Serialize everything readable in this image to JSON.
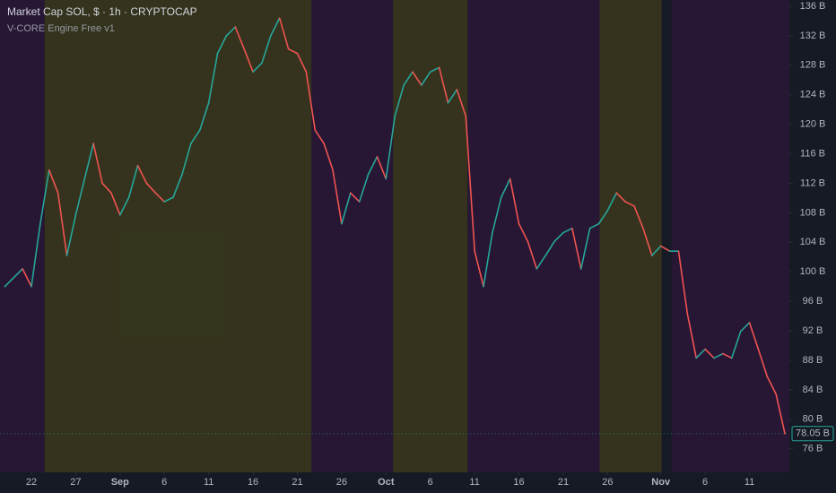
{
  "chart_data": {
    "type": "line",
    "title": "Market Cap SOL, $ · 1h · CRYPTOCAP",
    "subtitle": "V-CORE Engine Free v1",
    "up_color": "#26a69a",
    "down_color": "#ef5350",
    "x": [
      19,
      20,
      21,
      22,
      23,
      24,
      25,
      26,
      27,
      28,
      29,
      30,
      31,
      32,
      33,
      34,
      35,
      36,
      37,
      38,
      39,
      40,
      41,
      42,
      43,
      44,
      45,
      46,
      47,
      48,
      49,
      50,
      51,
      52,
      53,
      54,
      55,
      56,
      57,
      58,
      59,
      60,
      61,
      62,
      63,
      64,
      65,
      66,
      67,
      68,
      69,
      70,
      71,
      72,
      73,
      74,
      75,
      76,
      77,
      78,
      79,
      80,
      81,
      82,
      83,
      84,
      85,
      86,
      87,
      88,
      89,
      90,
      91,
      92,
      93,
      94,
      95,
      96,
      97,
      98,
      99,
      100,
      101,
      102,
      103,
      104,
      105,
      106,
      107
    ],
    "series": [
      {
        "values": [
          98.0,
          99.2,
          100.4,
          98.0,
          106.5,
          113.8,
          110.7,
          102.2,
          107.7,
          112.6,
          117.4,
          112.0,
          110.7,
          107.7,
          110.1,
          114.4,
          112.0,
          110.7,
          109.5,
          110.1,
          113.2,
          117.4,
          119.2,
          122.9,
          129.6,
          132.0,
          133.2,
          130.2,
          127.1,
          128.3,
          132.0,
          134.4,
          130.2,
          129.6,
          127.1,
          119.2,
          117.4,
          113.8,
          106.5,
          110.7,
          109.5,
          113.2,
          115.6,
          112.6,
          121.1,
          125.3,
          127.1,
          125.3,
          127.1,
          127.7,
          122.9,
          124.7,
          121.1,
          102.8,
          98.0,
          105.3,
          110.1,
          112.6,
          106.5,
          104.1,
          100.4,
          102.2,
          104.1,
          105.3,
          105.9,
          100.4,
          105.9,
          106.5,
          108.3,
          110.7,
          109.5,
          108.9,
          105.9,
          102.2,
          103.5,
          102.8,
          102.8,
          94.3,
          88.3,
          89.5,
          88.3,
          88.9,
          88.3,
          91.9,
          93.1,
          89.5,
          85.8,
          83.4,
          78.05
        ]
      }
    ],
    "bands": [
      {
        "start": 18.46,
        "end": 23.5,
        "color": "#2a1838"
      },
      {
        "start": 23.5,
        "end": 53.6,
        "color": "#3b381c"
      },
      {
        "start": 53.6,
        "end": 62.8,
        "color": "#2a1838"
      },
      {
        "start": 62.8,
        "end": 71.2,
        "color": "#3b381c"
      },
      {
        "start": 71.2,
        "end": 86.1,
        "color": "#2a1838"
      },
      {
        "start": 86.1,
        "end": 93.1,
        "color": "#3b381c"
      },
      {
        "start": 94.2,
        "end": 107.5,
        "color": "#2a1838"
      }
    ],
    "last_price": {
      "value": 78.05,
      "label": "78.05 B"
    },
    "grid": false,
    "xlim": [
      18.46,
      107.5
    ],
    "xticks": [
      {
        "value": 22,
        "label": "22"
      },
      {
        "value": 27,
        "label": "27"
      },
      {
        "value": 32,
        "label": "Sep"
      },
      {
        "value": 37,
        "label": "6"
      },
      {
        "value": 42,
        "label": "11"
      },
      {
        "value": 47,
        "label": "16"
      },
      {
        "value": 52,
        "label": "21"
      },
      {
        "value": 57,
        "label": "26"
      },
      {
        "value": 62,
        "label": "Oct"
      },
      {
        "value": 67,
        "label": "6"
      },
      {
        "value": 72,
        "label": "11"
      },
      {
        "value": 77,
        "label": "16"
      },
      {
        "value": 82,
        "label": "21"
      },
      {
        "value": 87,
        "label": "26"
      },
      {
        "value": 93,
        "label": "Nov"
      },
      {
        "value": 98,
        "label": "6"
      },
      {
        "value": 103,
        "label": "11"
      }
    ],
    "ylim": [
      72.8,
      136.85
    ],
    "yticks": [
      {
        "value": 76,
        "label": "76 B"
      },
      {
        "value": 80,
        "label": "80 B"
      },
      {
        "value": 84,
        "label": "84 B"
      },
      {
        "value": 88,
        "label": "88 B"
      },
      {
        "value": 92,
        "label": "92 B"
      },
      {
        "value": 96,
        "label": "96 B"
      },
      {
        "value": 100,
        "label": "100 B"
      },
      {
        "value": 104,
        "label": "104 B"
      },
      {
        "value": 108,
        "label": "108 B"
      },
      {
        "value": 112,
        "label": "112 B"
      },
      {
        "value": 116,
        "label": "116 B"
      },
      {
        "value": 120,
        "label": "120 B"
      },
      {
        "value": 124,
        "label": "124 B"
      },
      {
        "value": 128,
        "label": "128 B"
      },
      {
        "value": 132,
        "label": "132 B"
      },
      {
        "value": 136,
        "label": "136 B"
      }
    ]
  }
}
